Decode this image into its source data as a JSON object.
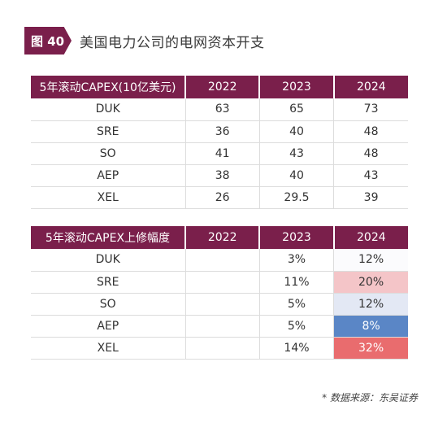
{
  "figure": {
    "tag": "图 40",
    "title": "美国电力公司的电网资本开支"
  },
  "table1": {
    "header": [
      "5年滚动CAPEX(10亿美元)",
      "2022",
      "2023",
      "2024"
    ],
    "rows": [
      {
        "name": "DUK",
        "v2022": "63",
        "v2023": "65",
        "v2024": "73"
      },
      {
        "name": "SRE",
        "v2022": "36",
        "v2023": "40",
        "v2024": "48"
      },
      {
        "name": "SO",
        "v2022": "41",
        "v2023": "43",
        "v2024": "48"
      },
      {
        "name": "AEP",
        "v2022": "38",
        "v2023": "40",
        "v2024": "43"
      },
      {
        "name": "XEL",
        "v2022": "26",
        "v2023": "29.5",
        "v2024": "39"
      }
    ]
  },
  "table2": {
    "header": [
      "5年滚动CAPEX上修幅度",
      "2022",
      "2023",
      "2024"
    ],
    "rows": [
      {
        "name": "DUK",
        "v2022": "",
        "v2023": "3%",
        "v2024": "12%",
        "color2024": "#fbfbfd"
      },
      {
        "name": "SRE",
        "v2022": "",
        "v2023": "11%",
        "v2024": "20%",
        "color2024": "#f4c5c8"
      },
      {
        "name": "SO",
        "v2022": "",
        "v2023": "5%",
        "v2024": "12%",
        "color2024": "#e3e8f4"
      },
      {
        "name": "AEP",
        "v2022": "",
        "v2023": "5%",
        "v2024": "8%",
        "color2024": "#5a86c6"
      },
      {
        "name": "XEL",
        "v2022": "",
        "v2023": "14%",
        "v2024": "32%",
        "color2024": "#e96c6e"
      }
    ]
  },
  "source": "* 数据来源：东吴证券"
}
